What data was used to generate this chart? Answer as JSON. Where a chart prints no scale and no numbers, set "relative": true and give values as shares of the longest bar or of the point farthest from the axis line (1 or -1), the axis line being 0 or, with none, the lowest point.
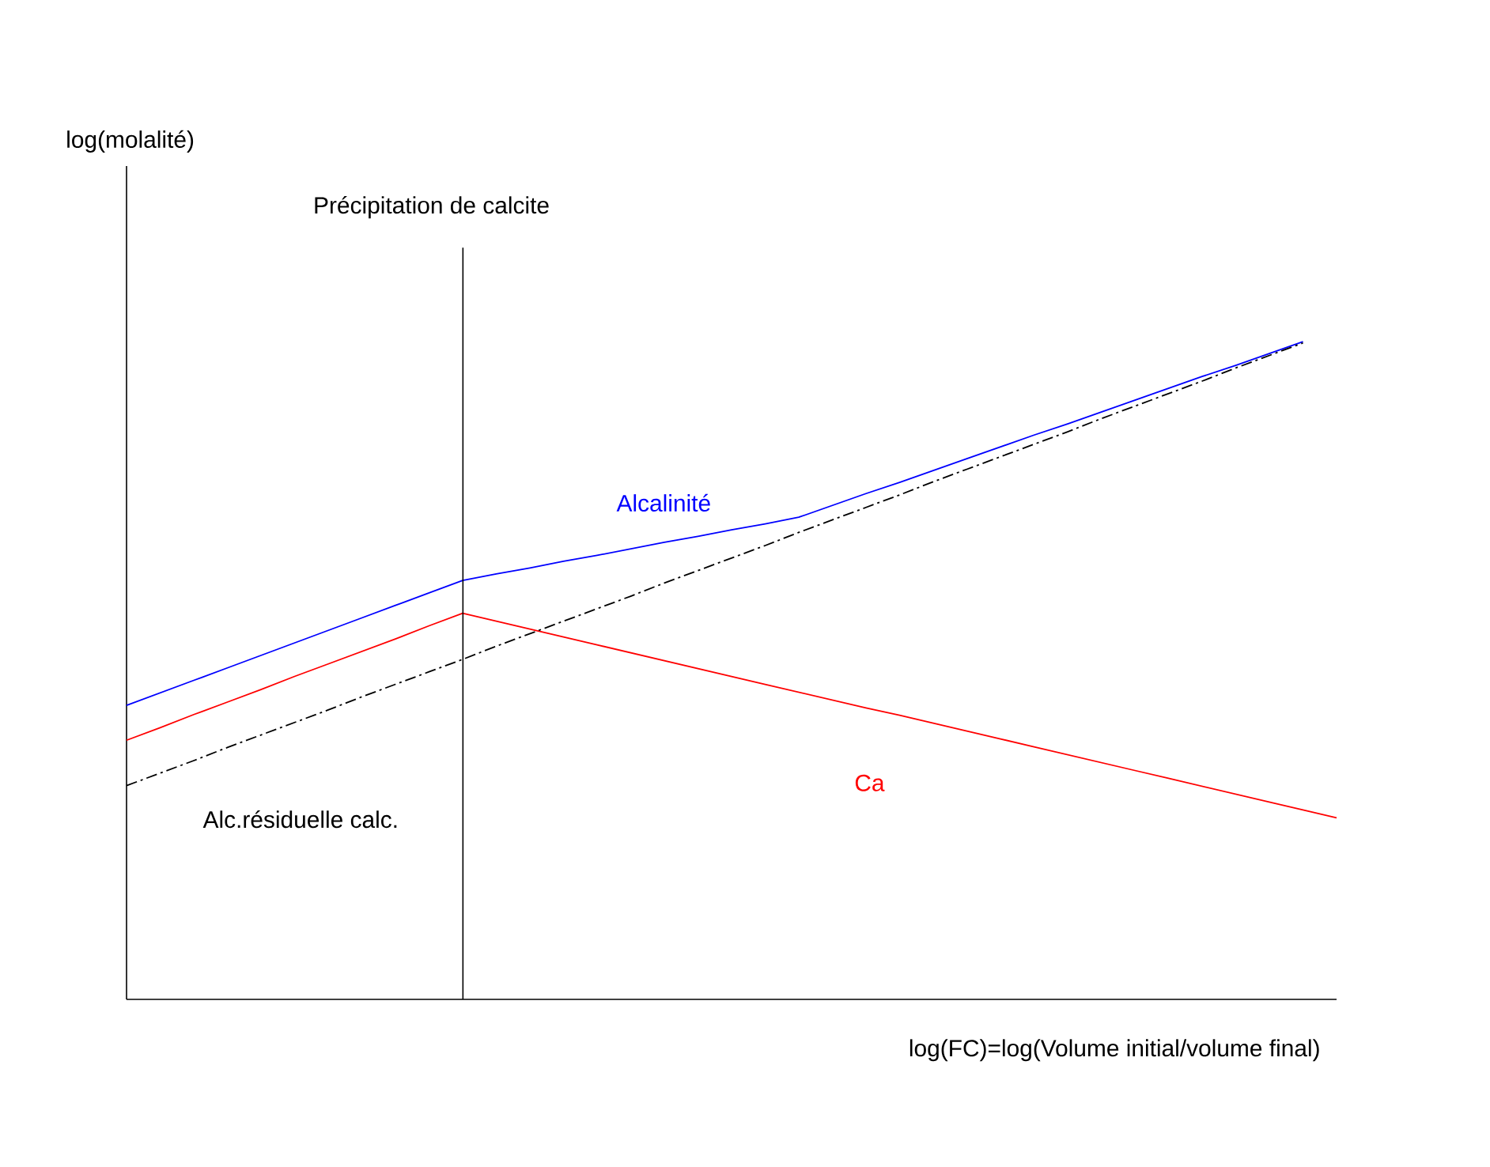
{
  "chart_data": {
    "type": "line",
    "relative": true,
    "xlabel": "log(FC)=log(Volume initial/volume final)",
    "categories": [
      null,
      null,
      null,
      null,
      null,
      null,
      null,
      null,
      null,
      null,
      null,
      null,
      null,
      null,
      null,
      null,
      null,
      null,
      null,
      null,
      null,
      null,
      null,
      null,
      null,
      null,
      null,
      null,
      null,
      null,
      null,
      null,
      null,
      null,
      null,
      null,
      null
    ],
    "series": [
      {
        "name": "Alcalinité",
        "color": "#0000ff",
        "values": [
          0.447,
          0.466,
          0.485,
          0.504,
          0.523,
          0.542,
          0.561,
          0.58,
          0.599,
          0.618,
          0.637,
          0.647,
          0.656,
          0.666,
          0.675,
          0.685,
          0.695,
          0.704,
          0.714,
          0.723,
          0.733,
          0.751,
          0.769,
          0.786,
          0.804,
          0.822,
          0.84,
          0.858,
          0.875,
          0.893,
          0.911,
          0.929,
          0.947,
          0.964,
          0.982,
          1.0,
          null
        ]
      },
      {
        "name": "Ca",
        "color": "#ff0000",
        "values": [
          0.394,
          0.413,
          0.433,
          0.452,
          0.471,
          0.491,
          0.51,
          0.529,
          0.548,
          0.568,
          0.587,
          0.575,
          0.563,
          0.551,
          0.539,
          0.527,
          0.515,
          0.503,
          0.491,
          0.479,
          0.467,
          0.455,
          0.443,
          0.432,
          0.42,
          0.408,
          0.396,
          0.384,
          0.372,
          0.36,
          0.348,
          0.336,
          0.324,
          0.312,
          0.3,
          0.288,
          0.276
        ]
      },
      {
        "name": "Alc.résiduelle calc.",
        "color": "#000000",
        "line_style": "dashed",
        "values": [
          0.325,
          0.344,
          0.363,
          0.383,
          0.402,
          0.421,
          0.44,
          0.46,
          0.479,
          0.498,
          0.517,
          0.537,
          0.556,
          0.575,
          0.594,
          0.613,
          0.633,
          0.652,
          0.671,
          0.69,
          0.71,
          0.729,
          0.748,
          0.767,
          0.787,
          0.806,
          0.825,
          0.844,
          0.863,
          0.883,
          0.902,
          0.921,
          0.94,
          0.96,
          0.979,
          0.998,
          null
        ]
      }
    ],
    "annotations": [
      "Précipitation de calcite",
      "log(molalité)"
    ],
    "tick_labels": false
  }
}
